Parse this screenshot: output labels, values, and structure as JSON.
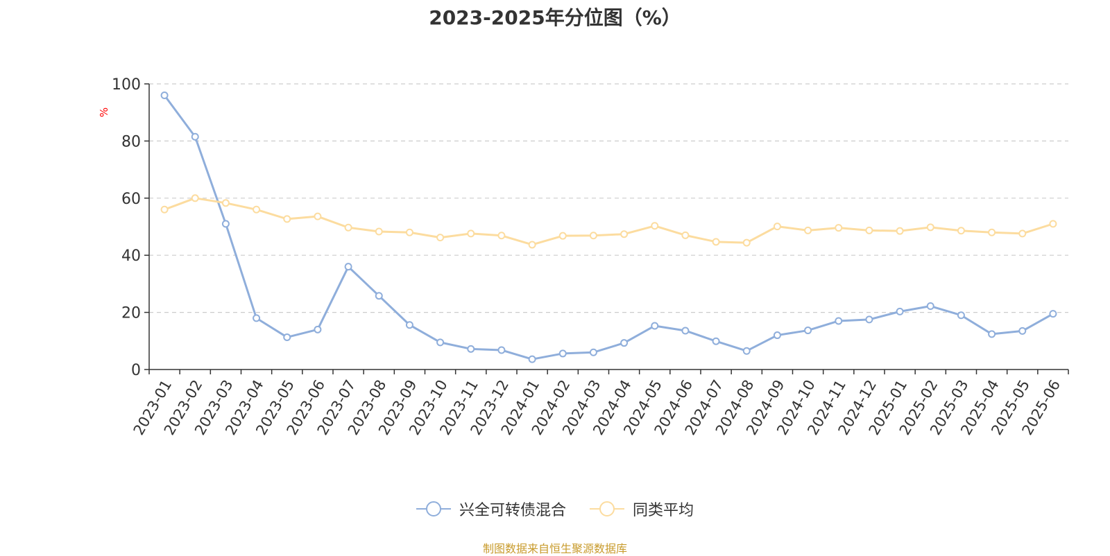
{
  "chart_data": {
    "type": "line",
    "title": "2023-2025年分位图（%）",
    "ylabel": "%",
    "xlabel": "",
    "ylim": [
      0,
      100
    ],
    "yticks": [
      0,
      20,
      40,
      60,
      80,
      100
    ],
    "grid": true,
    "legend_position": "bottom",
    "categories": [
      "2023-01",
      "2023-02",
      "2023-03",
      "2023-04",
      "2023-05",
      "2023-06",
      "2023-07",
      "2023-08",
      "2023-09",
      "2023-10",
      "2023-11",
      "2023-12",
      "2024-01",
      "2024-02",
      "2024-03",
      "2024-04",
      "2024-05",
      "2024-06",
      "2024-07",
      "2024-08",
      "2024-09",
      "2024-10",
      "2024-11",
      "2024-12",
      "2025-01",
      "2025-02",
      "2025-03",
      "2025-04",
      "2025-05",
      "2025-06"
    ],
    "series": [
      {
        "name": "兴全可转债混合",
        "color": "#8faedb",
        "values": [
          96,
          81.5,
          51,
          18,
          11.3,
          14,
          36,
          25.8,
          15.6,
          9.5,
          7.2,
          6.8,
          3.6,
          5.6,
          6,
          9.3,
          15.3,
          13.6,
          9.9,
          6.5,
          12,
          13.7,
          17,
          17.5,
          20.3,
          22.2,
          19,
          12.4,
          13.5,
          19.5
        ]
      },
      {
        "name": "同类平均",
        "color": "#fcdc9f",
        "values": [
          56,
          60,
          58.3,
          56,
          52.7,
          53.6,
          49.7,
          48.3,
          48,
          46.2,
          47.6,
          46.9,
          43.7,
          46.8,
          46.9,
          47.4,
          50.3,
          47,
          44.7,
          44.4,
          50.1,
          48.7,
          49.6,
          48.7,
          48.5,
          49.8,
          48.6,
          48,
          47.6,
          51
        ]
      }
    ]
  },
  "source_note": "制图数据来自恒生聚源数据库",
  "colors": {
    "axis": "#333333",
    "grid": "#cccccc",
    "tick_text": "#333333",
    "ylabel": "#ff0000",
    "source": "#c89b2c"
  }
}
